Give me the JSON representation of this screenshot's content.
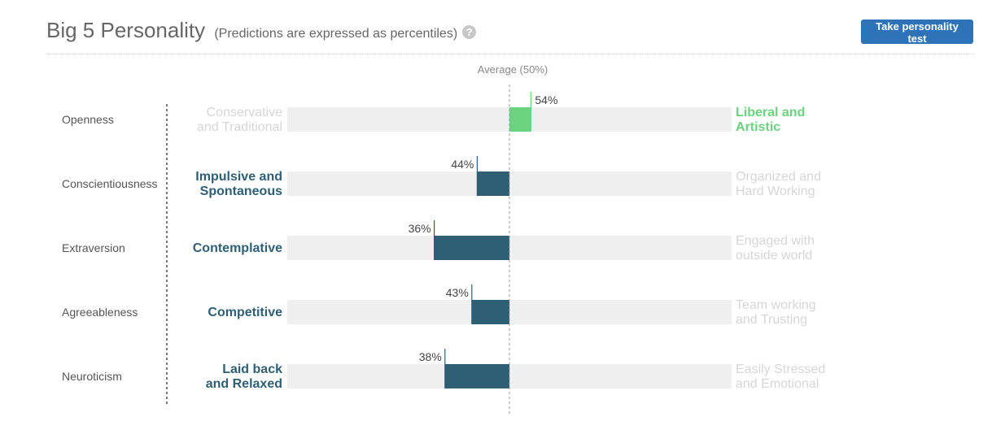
{
  "header": {
    "title": "Big 5 Personality",
    "subtitle": "(Predictions are expressed as percentiles)",
    "help_icon": "question-circle-icon",
    "button_label": "Take personality test"
  },
  "colors": {
    "positive": "#6bd37f",
    "negative": "#2e5f75",
    "track": "#efefef",
    "faded": "#d6d6d6"
  },
  "chart_data": {
    "type": "bar",
    "average_label": "Average (50%)",
    "xlim": [
      0,
      100
    ],
    "average": 50,
    "traits": [
      {
        "name": "Openness",
        "value": 54,
        "value_label": "54%",
        "low_label": "Conservative and Traditional",
        "high_label": "Liberal and Artistic"
      },
      {
        "name": "Conscientiousness",
        "value": 44,
        "value_label": "44%",
        "low_label": "Impulsive and Spontaneous",
        "high_label": "Organized and Hard Working"
      },
      {
        "name": "Extraversion",
        "value": 36,
        "value_label": "36%",
        "low_label": "Contemplative",
        "high_label": "Engaged with outside world"
      },
      {
        "name": "Agreeableness",
        "value": 43,
        "value_label": "43%",
        "low_label": "Competitive",
        "high_label": "Team working and Trusting"
      },
      {
        "name": "Neuroticism",
        "value": 38,
        "value_label": "38%",
        "low_label": "Laid back and Relaxed",
        "high_label": "Easily Stressed and Emotional"
      }
    ]
  }
}
